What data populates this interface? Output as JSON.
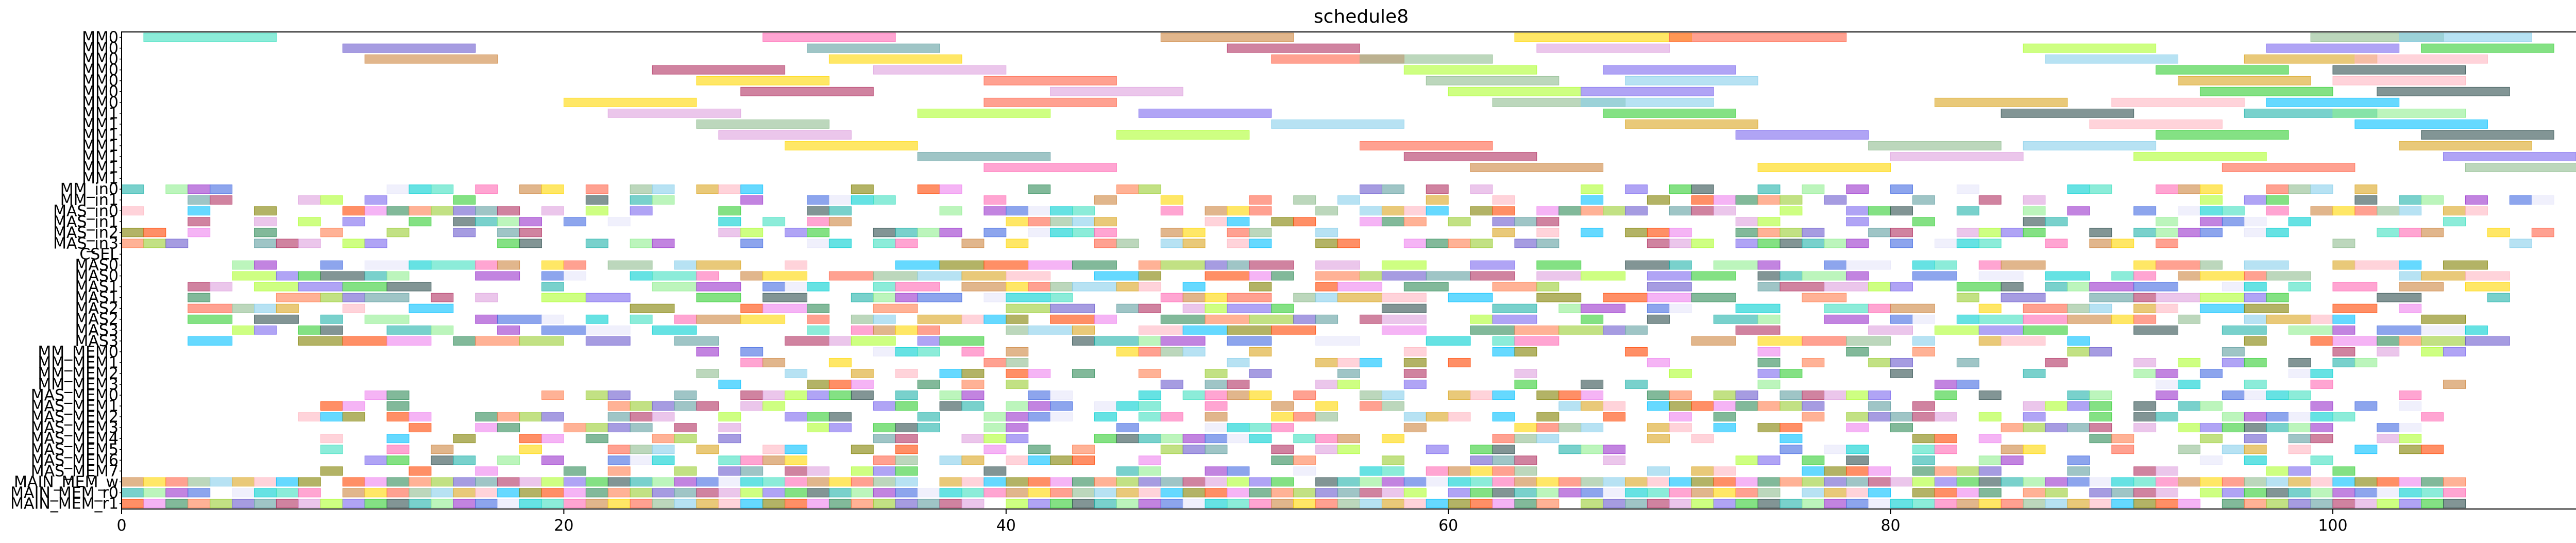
{
  "chart_data": {
    "type": "gantt",
    "title": "schedule8",
    "xlabel": "",
    "ylabel": "",
    "xlim": [
      0,
      112
    ],
    "x_ticks": [
      0,
      20,
      40,
      60,
      80,
      100
    ],
    "grid": false,
    "legend": "none",
    "rows": [
      "MM0",
      "MM0",
      "MM0",
      "MM0",
      "MM0",
      "MM0",
      "MM0",
      "MM1",
      "MM1",
      "MM1",
      "MM1",
      "MM1",
      "MM1",
      "MM1",
      "MM_in0",
      "MM_in1",
      "MAS_in0",
      "MAS_in1",
      "MAS_in2",
      "MAS_in3",
      "CSEL",
      "MAS0",
      "MAS0",
      "MAS1",
      "MAS1",
      "MAS2",
      "MAS2",
      "MAS3",
      "MAS3",
      "MM_MEM0",
      "MM_MEM1",
      "MM_MEM2",
      "MM_MEM3",
      "MAS_MEM0",
      "MAS_MEM1",
      "MAS_MEM2",
      "MAS_MEM3",
      "MAS_MEM4",
      "MAS_MEM5",
      "MAS_MEM6",
      "MAS_MEM7",
      "MAIN_MEM_w",
      "MAIN_MEM_r0",
      "MAIN_MEM_r1"
    ],
    "palette": [
      "#40e0c0",
      "#2e8b57",
      "#9932cc",
      "#00bfff",
      "#32cd32",
      "#8fbc8f",
      "#b03060",
      "#ff69b4",
      "#ff7f50",
      "#4169e1",
      "#808000",
      "#2f4f4f",
      "#87ceeb",
      "#dda0dd",
      "#cd853f",
      "#9acd32",
      "#e6e6fa",
      "#ff4500",
      "#20b2aa",
      "#daa520",
      "#adff2f",
      "#ffd700",
      "#6a5acd",
      "#00ced1",
      "#ee82ee",
      "#90ee90",
      "#ffb6c1",
      "#7b68ee",
      "#ff6347",
      "#5f9ea0"
    ],
    "long_tasks": [
      [
        0,
        1,
        7
      ],
      [
        0,
        29,
        35
      ],
      [
        0,
        47,
        53
      ],
      [
        0,
        63,
        71
      ],
      [
        0,
        70,
        78
      ],
      [
        0,
        99,
        105
      ],
      [
        0,
        103,
        109
      ],
      [
        1,
        10,
        16
      ],
      [
        1,
        31,
        37
      ],
      [
        1,
        50,
        56
      ],
      [
        1,
        64,
        70
      ],
      [
        1,
        86,
        92
      ],
      [
        1,
        97,
        103
      ],
      [
        1,
        104,
        110
      ],
      [
        2,
        11,
        17
      ],
      [
        2,
        32,
        38
      ],
      [
        2,
        52,
        58
      ],
      [
        2,
        56,
        62
      ],
      [
        2,
        87,
        93
      ],
      [
        2,
        96,
        102
      ],
      [
        2,
        101,
        107
      ],
      [
        3,
        24,
        30
      ],
      [
        3,
        34,
        40
      ],
      [
        3,
        58,
        64
      ],
      [
        3,
        67,
        73
      ],
      [
        3,
        92,
        98
      ],
      [
        3,
        100,
        106
      ],
      [
        4,
        26,
        32
      ],
      [
        4,
        39,
        45
      ],
      [
        4,
        59,
        65
      ],
      [
        4,
        68,
        74
      ],
      [
        4,
        93,
        99
      ],
      [
        4,
        100,
        106
      ],
      [
        5,
        28,
        34
      ],
      [
        5,
        42,
        48
      ],
      [
        5,
        60,
        66
      ],
      [
        5,
        66,
        72
      ],
      [
        5,
        94,
        100
      ],
      [
        5,
        102,
        108
      ],
      [
        6,
        20,
        26
      ],
      [
        6,
        39,
        45
      ],
      [
        6,
        62,
        68
      ],
      [
        6,
        66,
        72
      ],
      [
        6,
        82,
        88
      ],
      [
        6,
        90,
        96
      ],
      [
        6,
        97,
        103
      ],
      [
        7,
        22,
        28
      ],
      [
        7,
        36,
        42
      ],
      [
        7,
        46,
        52
      ],
      [
        7,
        67,
        73
      ],
      [
        7,
        85,
        91
      ],
      [
        7,
        96,
        102
      ],
      [
        7,
        100,
        106
      ],
      [
        8,
        26,
        32
      ],
      [
        8,
        52,
        58
      ],
      [
        8,
        68,
        74
      ],
      [
        8,
        89,
        95
      ],
      [
        8,
        101,
        107
      ],
      [
        9,
        27,
        33
      ],
      [
        9,
        45,
        51
      ],
      [
        9,
        73,
        79
      ],
      [
        9,
        92,
        98
      ],
      [
        9,
        104,
        110
      ],
      [
        10,
        30,
        36
      ],
      [
        10,
        56,
        62
      ],
      [
        10,
        79,
        85
      ],
      [
        10,
        86,
        92
      ],
      [
        10,
        103,
        109
      ],
      [
        11,
        36,
        42
      ],
      [
        11,
        58,
        64
      ],
      [
        11,
        80,
        86
      ],
      [
        11,
        91,
        97
      ],
      [
        11,
        105,
        111
      ],
      [
        12,
        39,
        45
      ],
      [
        12,
        61,
        67
      ],
      [
        12,
        74,
        80
      ],
      [
        12,
        95,
        101
      ],
      [
        12,
        106,
        112
      ]
    ]
  }
}
